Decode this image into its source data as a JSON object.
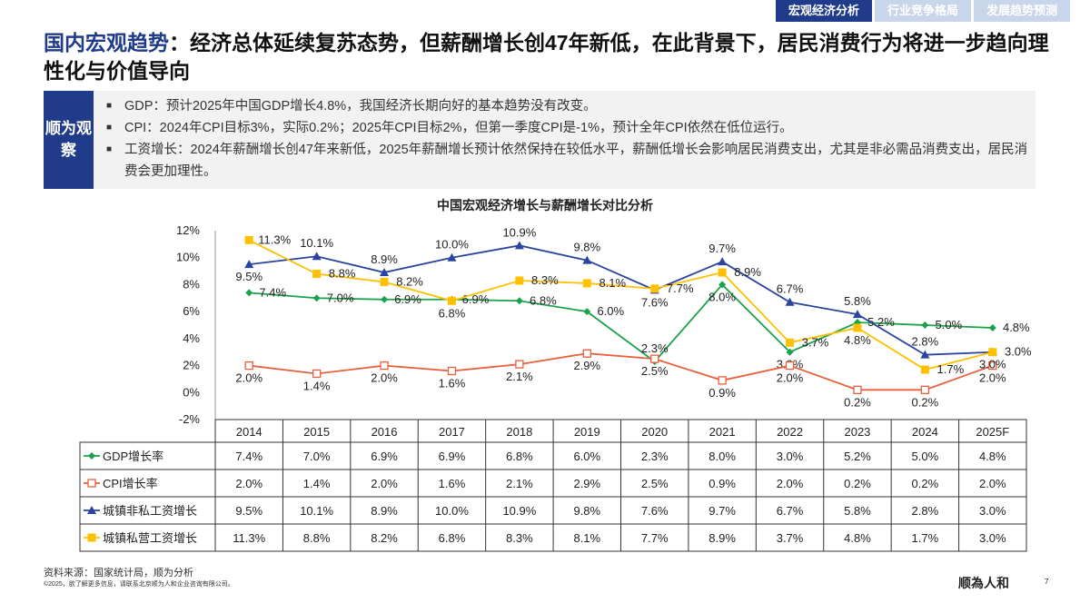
{
  "tabs": [
    "宏观经济分析",
    "行业竞争格局",
    "发展趋势预测"
  ],
  "title": {
    "highlight": "国内宏观趋势",
    "rest": "：经济总体延续复苏态势，但薪酬增长创47年新低，在此背景下，居民消费行为将进一步趋向理性化与价值导向"
  },
  "observation": {
    "tag": "顺为观察",
    "items": [
      "GDP：预计2025年中国GDP增长4.8%，我国经济长期向好的基本趋势没有改变。",
      "CPI：2024年CPI目标3%，实际0.2%；2025年CPI目标2%，但第一季度CPI是-1%，预计全年CPI依然在低位运行。",
      "工资增长：2024年薪酬增长创47年来新低，2025年薪酬增长预计依然保持在较低水平，薪酬低增长会影响居民消费支出，尤其是非必需品消费支出，居民消费会更加理性。"
    ]
  },
  "chart_data": {
    "type": "line",
    "title": "中国宏观经济增长与薪酬增长对比分析",
    "categories": [
      "2014",
      "2015",
      "2016",
      "2017",
      "2018",
      "2019",
      "2020",
      "2021",
      "2022",
      "2023",
      "2024",
      "2025F"
    ],
    "ylim": [
      -2,
      12
    ],
    "yticks": [
      "-2%",
      "0%",
      "2%",
      "4%",
      "6%",
      "8%",
      "10%",
      "12%"
    ],
    "legend": "data-table",
    "series": [
      {
        "name": "GDP增长率",
        "color": "#1aa34a",
        "marker": "diamond",
        "values": [
          7.4,
          7.0,
          6.9,
          6.9,
          6.8,
          6.0,
          2.3,
          8.0,
          3.0,
          5.2,
          5.0,
          4.8
        ]
      },
      {
        "name": "CPI增长率",
        "color": "#e8603c",
        "marker": "square-open",
        "values": [
          2.0,
          1.4,
          2.0,
          1.6,
          2.1,
          2.9,
          2.5,
          0.9,
          2.0,
          0.2,
          0.2,
          2.0
        ]
      },
      {
        "name": "城镇非私工资增长",
        "color": "#2b44a0",
        "marker": "triangle",
        "values": [
          9.5,
          10.1,
          8.9,
          10.0,
          10.9,
          9.8,
          7.6,
          9.7,
          6.7,
          5.8,
          2.8,
          3.0
        ]
      },
      {
        "name": "城镇私营工资增长",
        "color": "#ffc000",
        "marker": "square",
        "values": [
          11.3,
          8.8,
          8.2,
          6.8,
          8.3,
          8.1,
          7.7,
          8.9,
          3.7,
          4.8,
          1.7,
          3.0
        ]
      }
    ]
  },
  "footer": {
    "source": "资料来源：国家统计局，顺为分析",
    "copyright": "©2025，欲了解更多信息，请联系北京顺为人和企业咨询有限公司。",
    "logo": "顺為人和",
    "page": "7"
  }
}
